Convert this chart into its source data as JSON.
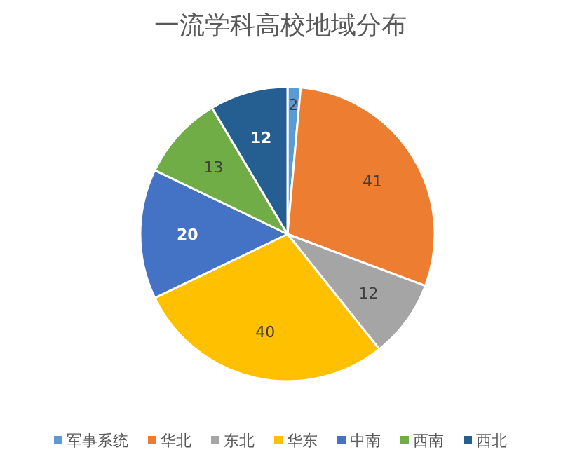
{
  "chart_data": {
    "type": "pie",
    "title": "一流学科高校地域分布",
    "categories": [
      "军事系统",
      "华北",
      "东北",
      "华东",
      "中南",
      "西南",
      "西北"
    ],
    "values": [
      2,
      41,
      12,
      40,
      20,
      13,
      12
    ],
    "colors": [
      "#5b9bd5",
      "#ed7d31",
      "#a5a5a5",
      "#ffc000",
      "#4472c4",
      "#70ad47",
      "#255e91"
    ],
    "data_labels": true,
    "legend": "bottom"
  }
}
